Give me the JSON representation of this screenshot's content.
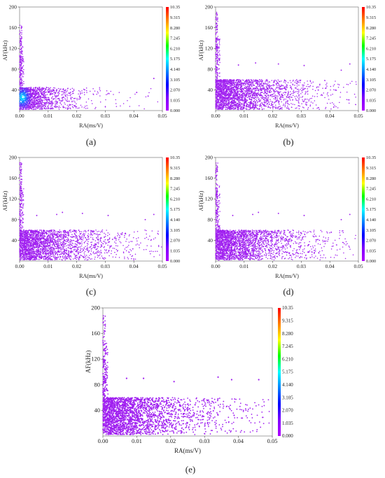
{
  "colorbar": {
    "ticks": [
      "10.35",
      "9.315",
      "8.280",
      "7.245",
      "6.210",
      "5.175",
      "4.140",
      "3.105",
      "2.070",
      "1.035",
      "0.000"
    ],
    "colors": [
      "#ff0000",
      "#ff8000",
      "#ffff00",
      "#00ff00",
      "#00ffff",
      "#0080ff",
      "#0000ff",
      "#8000ff",
      "#b000ff"
    ]
  },
  "chart_data": [
    {
      "type": "scatter",
      "label": "(a)",
      "xlabel": "RA(ms/V)",
      "ylabel": "AF(kHz)",
      "xlim": [
        0,
        0.05
      ],
      "ylim": [
        0,
        200
      ],
      "xticks": [
        "0.00",
        "0.01",
        "0.02",
        "0.03",
        "0.04",
        "0.05"
      ],
      "yticks": [
        "40",
        "80",
        "120",
        "160",
        "200"
      ],
      "colorbar_range": [
        0,
        10.35
      ],
      "core": {
        "x_center": 0.001,
        "y_center": 25,
        "color": "cyan-blue"
      },
      "bulk": {
        "x_max": 0.05,
        "y_range": [
          2,
          45
        ]
      },
      "outliers": [
        [
          0.047,
          62
        ],
        [
          0.041,
          35
        ],
        [
          0.045,
          28
        ]
      ]
    },
    {
      "type": "scatter",
      "label": "(b)",
      "xlabel": "RA(ms/V)",
      "ylabel": "AF(kHz)",
      "xlim": [
        0,
        0.05
      ],
      "ylim": [
        0,
        200
      ],
      "xticks": [
        "0.00",
        "0.01",
        "0.02",
        "0.03",
        "0.04",
        "0.05"
      ],
      "yticks": [
        "40",
        "80",
        "120",
        "160",
        "200"
      ],
      "colorbar_range": [
        0,
        10.35
      ],
      "bulk": {
        "x_max": 0.05,
        "y_range": [
          2,
          60
        ]
      },
      "outliers": [
        [
          0.008,
          88
        ],
        [
          0.014,
          92
        ],
        [
          0.022,
          90
        ],
        [
          0.031,
          87
        ],
        [
          0.047,
          90
        ],
        [
          0.044,
          78
        ]
      ]
    },
    {
      "type": "scatter",
      "label": "(c)",
      "xlabel": "RA(ms/V)",
      "ylabel": "AF(kHz)",
      "xlim": [
        0,
        0.05
      ],
      "ylim": [
        0,
        200
      ],
      "xticks": [
        "0.00",
        "0.01",
        "0.02",
        "0.03",
        "0.04",
        "0.05"
      ],
      "yticks": [
        "40",
        "80",
        "120",
        "160",
        "200"
      ],
      "colorbar_range": [
        0,
        10.35
      ],
      "bulk": {
        "x_max": 0.05,
        "y_range": [
          2,
          60
        ]
      },
      "outliers": [
        [
          0.006,
          88
        ],
        [
          0.013,
          90
        ],
        [
          0.015,
          94
        ],
        [
          0.022,
          92
        ],
        [
          0.031,
          88
        ],
        [
          0.047,
          90
        ],
        [
          0.044,
          80
        ]
      ]
    },
    {
      "type": "scatter",
      "label": "(d)",
      "xlabel": "RA(ms/V)",
      "ylabel": "AF(kHz)",
      "xlim": [
        0,
        0.05
      ],
      "ylim": [
        0,
        200
      ],
      "xticks": [
        "0.00",
        "0.01",
        "0.02",
        "0.03",
        "0.04",
        "0.05"
      ],
      "yticks": [
        "40",
        "80",
        "120",
        "160",
        "200"
      ],
      "colorbar_range": [
        0,
        10.35
      ],
      "bulk": {
        "x_max": 0.05,
        "y_range": [
          2,
          60
        ]
      },
      "outliers": [
        [
          0.006,
          88
        ],
        [
          0.013,
          90
        ],
        [
          0.015,
          94
        ],
        [
          0.022,
          92
        ],
        [
          0.031,
          88
        ],
        [
          0.047,
          90
        ],
        [
          0.044,
          80
        ]
      ]
    },
    {
      "type": "scatter",
      "label": "(e)",
      "xlabel": "RA(ms/V)",
      "ylabel": "AF(kHz)",
      "xlim": [
        0,
        0.05
      ],
      "ylim": [
        0,
        200
      ],
      "xticks": [
        "0.00",
        "0.01",
        "0.02",
        "0.03",
        "0.04",
        "0.05"
      ],
      "yticks": [
        "40",
        "80",
        "120",
        "160",
        "200"
      ],
      "colorbar_range": [
        0,
        10.35
      ],
      "bulk": {
        "x_max": 0.05,
        "y_range": [
          2,
          60
        ]
      },
      "outliers": [
        [
          0.007,
          90
        ],
        [
          0.012,
          90
        ],
        [
          0.021,
          85
        ],
        [
          0.034,
          92
        ],
        [
          0.038,
          88
        ],
        [
          0.046,
          88
        ]
      ]
    }
  ]
}
